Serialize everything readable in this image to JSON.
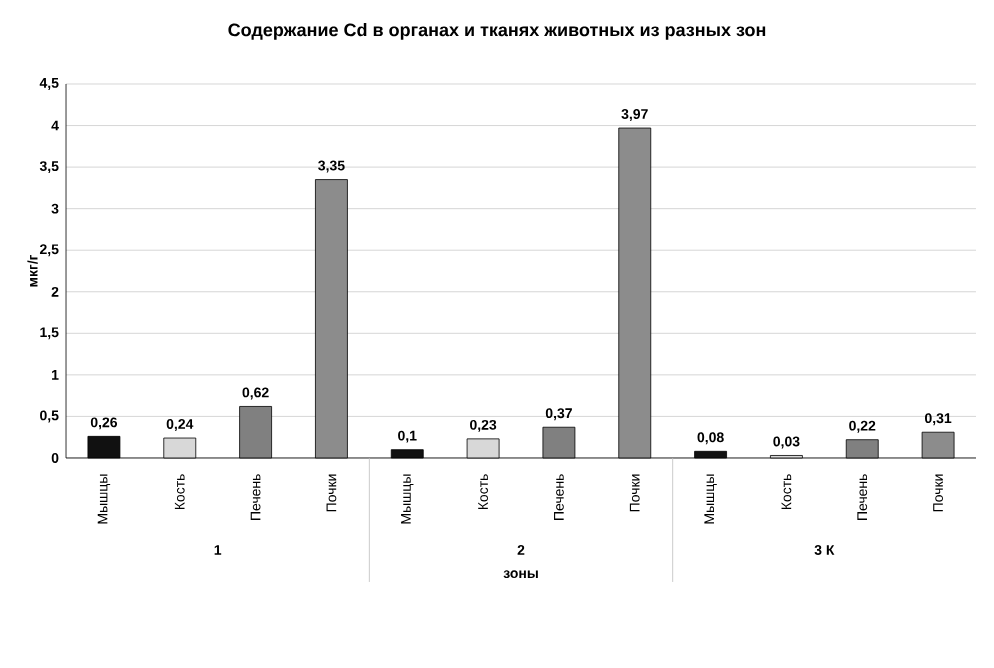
{
  "chart_data": {
    "type": "bar",
    "title": "Содержание Cd в органах и тканях животных из разных зон",
    "xlabel": "зоны",
    "ylabel": "мкг/г",
    "categories": [
      "Мышцы",
      "Кость",
      "Печень",
      "Почки",
      "Мышцы",
      "Кость",
      "Печень",
      "Почки",
      "Мышцы",
      "Кость",
      "Печень",
      "Почки"
    ],
    "values": [
      0.26,
      0.24,
      0.62,
      3.35,
      0.1,
      0.23,
      0.37,
      3.97,
      0.08,
      0.03,
      0.22,
      0.31
    ],
    "value_labels": [
      "0,26",
      "0,24",
      "0,62",
      "3,35",
      "0,1",
      "0,23",
      "0,37",
      "3,97",
      "0,08",
      "0,03",
      "0,22",
      "0,31"
    ],
    "colors": [
      "#111111",
      "#d8d8d8",
      "#808080",
      "#8c8c8c",
      "#111111",
      "#d8d8d8",
      "#808080",
      "#8c8c8c",
      "#111111",
      "#d8d8d8",
      "#808080",
      "#8c8c8c"
    ],
    "annotations": [
      "1",
      "2",
      "3 К"
    ],
    "ylim": [
      0,
      4.5
    ],
    "yticks": [
      0,
      {
        "value": 0.5,
        "label": "0,5"
      },
      1,
      {
        "value": 1.5,
        "label": "1,5"
      },
      2,
      {
        "value": 2.5,
        "label": "2,5"
      },
      3,
      {
        "value": 3.5,
        "label": "3,5"
      },
      4,
      {
        "value": 4.5,
        "label": "4,5"
      }
    ],
    "grid": "y"
  }
}
